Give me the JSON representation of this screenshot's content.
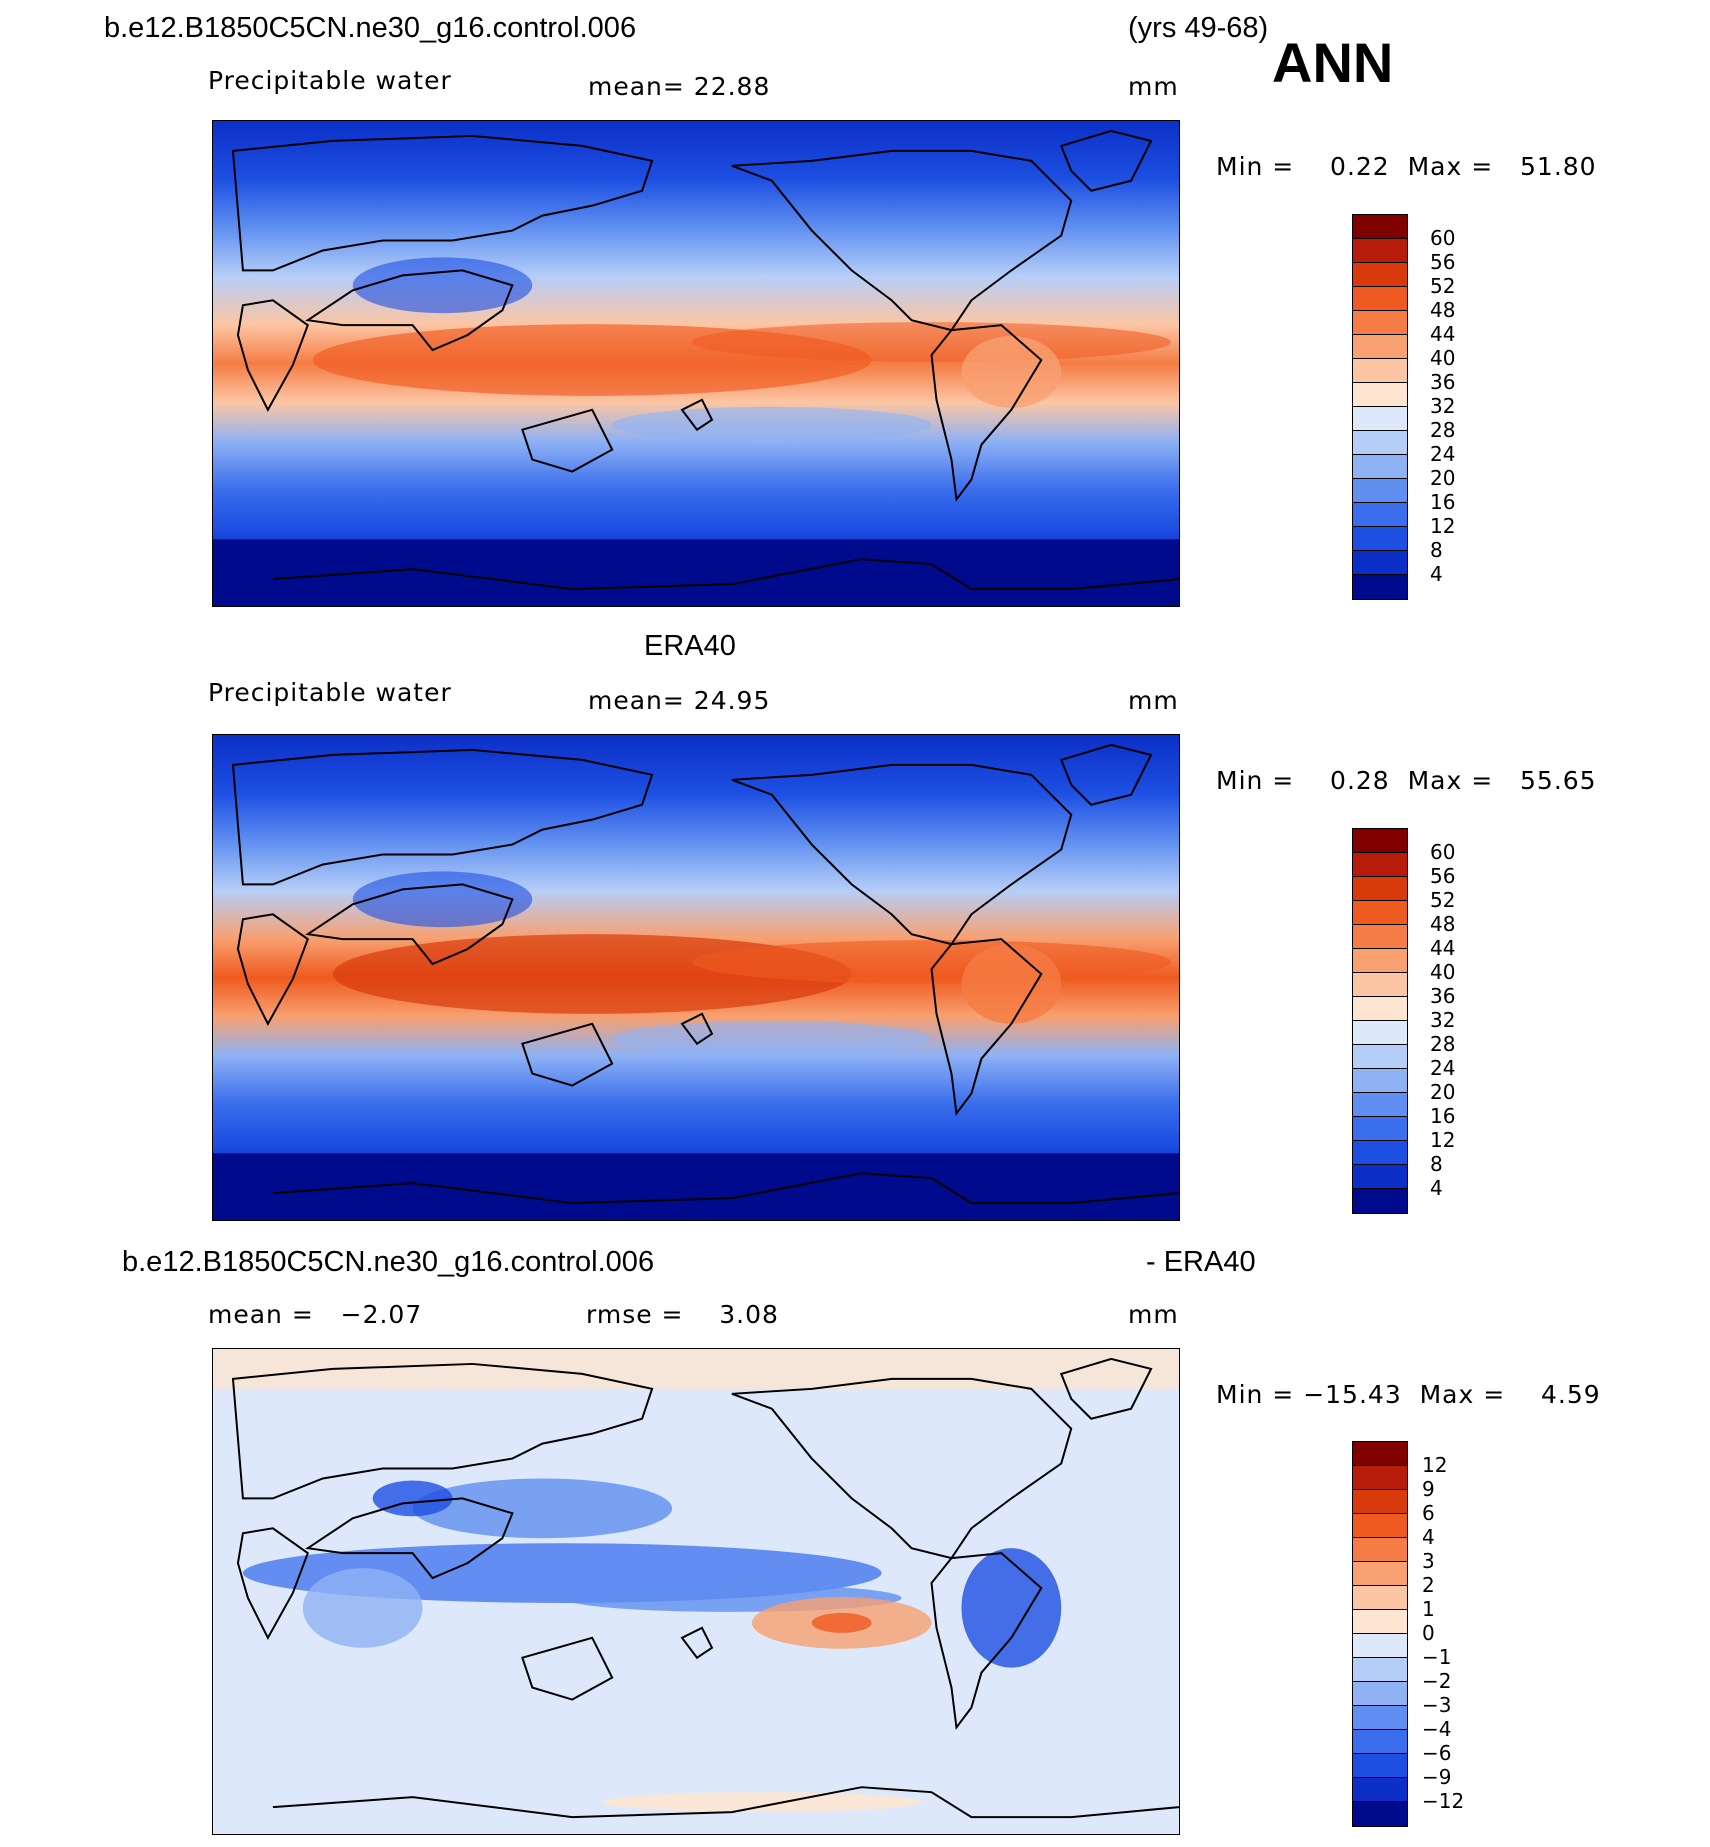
{
  "header": {
    "case_name": "b.e12.B1850C5CN.ne30_g16.control.006",
    "years": "(yrs 49-68)",
    "season": "ANN"
  },
  "panels": [
    {
      "variable": "Precipitable water",
      "mean_text": "mean=   22.88",
      "units": "mm",
      "minmax": "Min =    0.22  Max =   51.80",
      "levels": [
        "60",
        "56",
        "52",
        "48",
        "44",
        "40",
        "36",
        "32",
        "28",
        "24",
        "20",
        "16",
        "12",
        "8",
        "4"
      ],
      "colors": [
        "#800000",
        "#b71c0a",
        "#d93a0c",
        "#ef5a20",
        "#f57c44",
        "#f8a070",
        "#fcc6a4",
        "#fde5d1",
        "#dde9fb",
        "#b5cef8",
        "#8fb2f4",
        "#5f8ff0",
        "#3a6eec",
        "#1d4fe2",
        "#0b2fc7",
        "#000a8c"
      ]
    },
    {
      "title": "ERA40",
      "variable": "Precipitable water",
      "mean_text": "mean=   24.95",
      "units": "mm",
      "minmax": "Min =    0.28  Max =   55.65",
      "levels": [
        "60",
        "56",
        "52",
        "48",
        "44",
        "40",
        "36",
        "32",
        "28",
        "24",
        "20",
        "16",
        "12",
        "8",
        "4"
      ],
      "colors": [
        "#800000",
        "#b71c0a",
        "#d93a0c",
        "#ef5a20",
        "#f57c44",
        "#f8a070",
        "#fcc6a4",
        "#fde5d1",
        "#dde9fb",
        "#b5cef8",
        "#8fb2f4",
        "#5f8ff0",
        "#3a6eec",
        "#1d4fe2",
        "#0b2fc7",
        "#000a8c"
      ]
    },
    {
      "title_left": "b.e12.B1850C5CN.ne30_g16.control.006",
      "title_right": "- ERA40",
      "mean_text": "mean =   −2.07",
      "rmse_text": "rmse =    3.08",
      "units": "mm",
      "minmax": "Min = −15.43  Max =    4.59",
      "levels": [
        "12",
        "9",
        "6",
        "4",
        "3",
        "2",
        "1",
        "0",
        "−1",
        "−2",
        "−3",
        "−4",
        "−6",
        "−9",
        "−12"
      ],
      "colors": [
        "#800000",
        "#b71c0a",
        "#d93a0c",
        "#ef5a20",
        "#f57c44",
        "#f8a070",
        "#fcc6a4",
        "#fde5d1",
        "#dde9fb",
        "#b5cef8",
        "#8fb2f4",
        "#5f8ff0",
        "#3a6eec",
        "#1d4fe2",
        "#0b2fc7",
        "#000a8c"
      ]
    }
  ]
}
